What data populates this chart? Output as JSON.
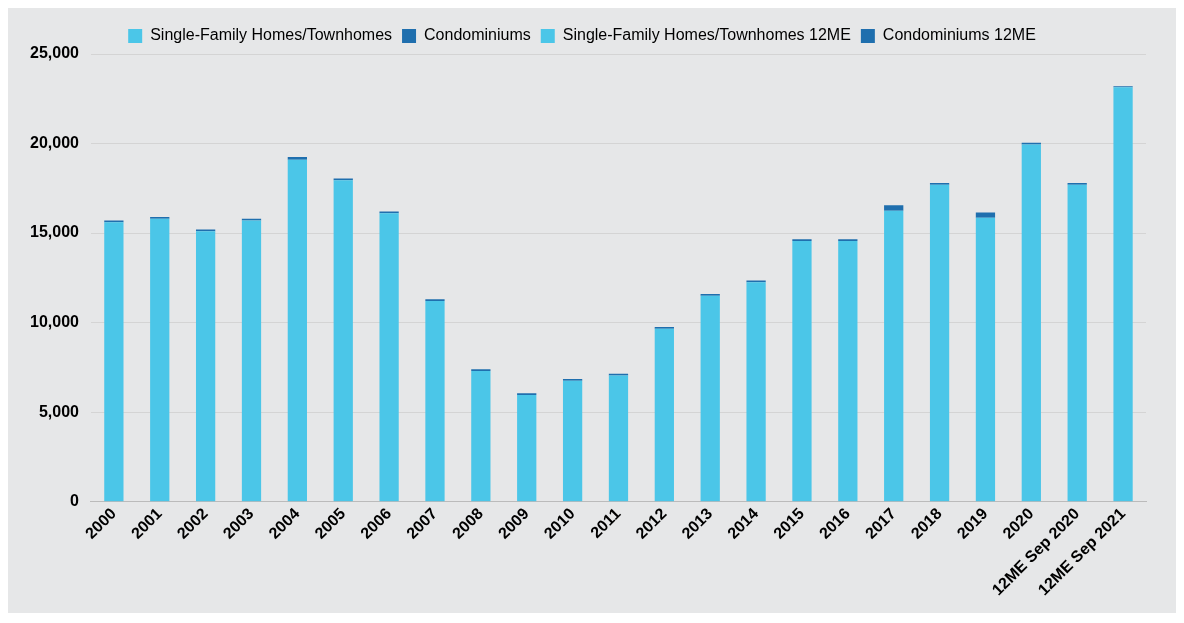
{
  "chart_data": {
    "type": "bar",
    "stacked": true,
    "categories": [
      "2000",
      "2001",
      "2002",
      "2003",
      "2004",
      "2005",
      "2006",
      "2007",
      "2008",
      "2009",
      "2010",
      "2011",
      "2012",
      "2013",
      "2014",
      "2015",
      "2016",
      "2017",
      "2018",
      "2019",
      "2020",
      "12ME Sep 2020",
      "12ME Sep 2021"
    ],
    "series": [
      {
        "name": "Single-Family Homes/Townhomes",
        "color": "#4bc6e8",
        "values": [
          15600,
          15800,
          15100,
          15700,
          19100,
          17950,
          16100,
          11200,
          7300,
          5950,
          6750,
          7050,
          9650,
          11500,
          12250,
          14550,
          14550,
          16250,
          17700,
          15850,
          19950,
          null,
          null
        ]
      },
      {
        "name": "Condominiums",
        "color": "#1f6fae",
        "values": [
          100,
          100,
          100,
          100,
          150,
          100,
          100,
          100,
          100,
          100,
          100,
          100,
          100,
          100,
          100,
          100,
          100,
          300,
          100,
          300,
          100,
          null,
          null
        ]
      },
      {
        "name": "Single-Family Homes/Townhomes 12ME",
        "color": "#4bc6e8",
        "values": [
          null,
          null,
          null,
          null,
          null,
          null,
          null,
          null,
          null,
          null,
          null,
          null,
          null,
          null,
          null,
          null,
          null,
          null,
          null,
          null,
          null,
          17700,
          23150
        ]
      },
      {
        "name": "Condominiums 12ME",
        "color": "#1f6fae",
        "values": [
          null,
          null,
          null,
          null,
          null,
          null,
          null,
          null,
          null,
          null,
          null,
          null,
          null,
          null,
          null,
          null,
          null,
          null,
          null,
          null,
          null,
          100,
          50
        ]
      }
    ],
    "ylim": [
      0,
      25000
    ],
    "yticks": [
      0,
      {
        "value": 5000,
        "label": "5,000"
      },
      {
        "value": 10000,
        "label": "10,000"
      },
      {
        "value": 15000,
        "label": "15,000"
      },
      {
        "value": 20000,
        "label": "20,000"
      },
      {
        "value": 25000,
        "label": "25,000"
      }
    ],
    "grid": "y",
    "legend": "top"
  }
}
